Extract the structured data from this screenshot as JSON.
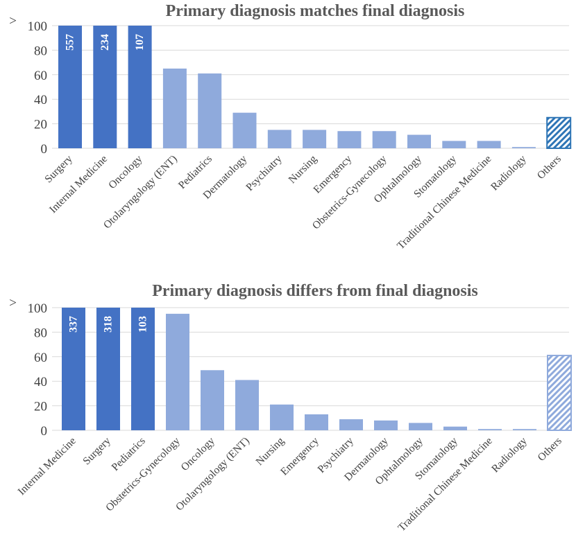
{
  "colors": {
    "dark_bar": "#4472c4",
    "light_bar": "#8faadc",
    "hatch_dark": "#2e75b6",
    "hatch_light": "#8faadc",
    "grid": "#d9d9d9",
    "title": "#595959",
    "text": "#404040"
  },
  "chart_data": [
    {
      "type": "bar",
      "title": "Primary diagnosis matches final diagnosis",
      "xlabel": "",
      "ylabel": "",
      "ylim": [
        0,
        100
      ],
      "yticks": [
        "0",
        "20",
        "40",
        "60",
        "80",
        "100"
      ],
      "overflow_marker": ">",
      "grid": true,
      "categories": [
        "Surgery",
        "Internal Medicine",
        "Oncology",
        "Otolaryngology (ENT)",
        "Pediatrics",
        "Dermatology",
        "Psychiatry",
        "Nursing",
        "Emergency",
        "Obstetrics-Gynecology",
        "Ophtalmology",
        "Stomatology",
        "Traditional Chinese Medicine",
        "Radiology",
        "Others"
      ],
      "values": [
        557,
        234,
        107,
        65,
        61,
        29,
        15,
        15,
        14,
        14,
        11,
        6,
        6,
        1,
        25
      ],
      "data_labels": [
        "557",
        "234",
        "107",
        "",
        "",
        "",
        "",
        "",
        "",
        "",
        "",
        "",
        "",
        "",
        ""
      ],
      "styles": [
        "dark",
        "dark",
        "dark",
        "light",
        "light",
        "light",
        "light",
        "light",
        "light",
        "light",
        "light",
        "light",
        "light",
        "light",
        "hatch-dark"
      ]
    },
    {
      "type": "bar",
      "title": "Primary diagnosis differs from final diagnosis",
      "xlabel": "",
      "ylabel": "",
      "ylim": [
        0,
        100
      ],
      "yticks": [
        "0",
        "20",
        "40",
        "60",
        "80",
        "100"
      ],
      "overflow_marker": ">",
      "grid": true,
      "categories": [
        "Internal Medicine",
        "Surgery",
        "Pediatrics",
        "Obstetrics-Gynecology",
        "Oncology",
        "Otolaryngology (ENT)",
        "Nursing",
        "Emergency",
        "Psychiatry",
        "Dermatology",
        "Ophtalmology",
        "Stomatology",
        "Traditional Chinese Medicine",
        "Radiology",
        "Others"
      ],
      "values": [
        337,
        318,
        103,
        95,
        49,
        41,
        21,
        13,
        9,
        8,
        6,
        3,
        1,
        1,
        61
      ],
      "data_labels": [
        "337",
        "318",
        "103",
        "",
        "",
        "",
        "",
        "",
        "",
        "",
        "",
        "",
        "",
        "",
        ""
      ],
      "styles": [
        "dark",
        "dark",
        "dark",
        "light",
        "light",
        "light",
        "light",
        "light",
        "light",
        "light",
        "light",
        "light",
        "light",
        "light",
        "hatch-light"
      ]
    }
  ]
}
